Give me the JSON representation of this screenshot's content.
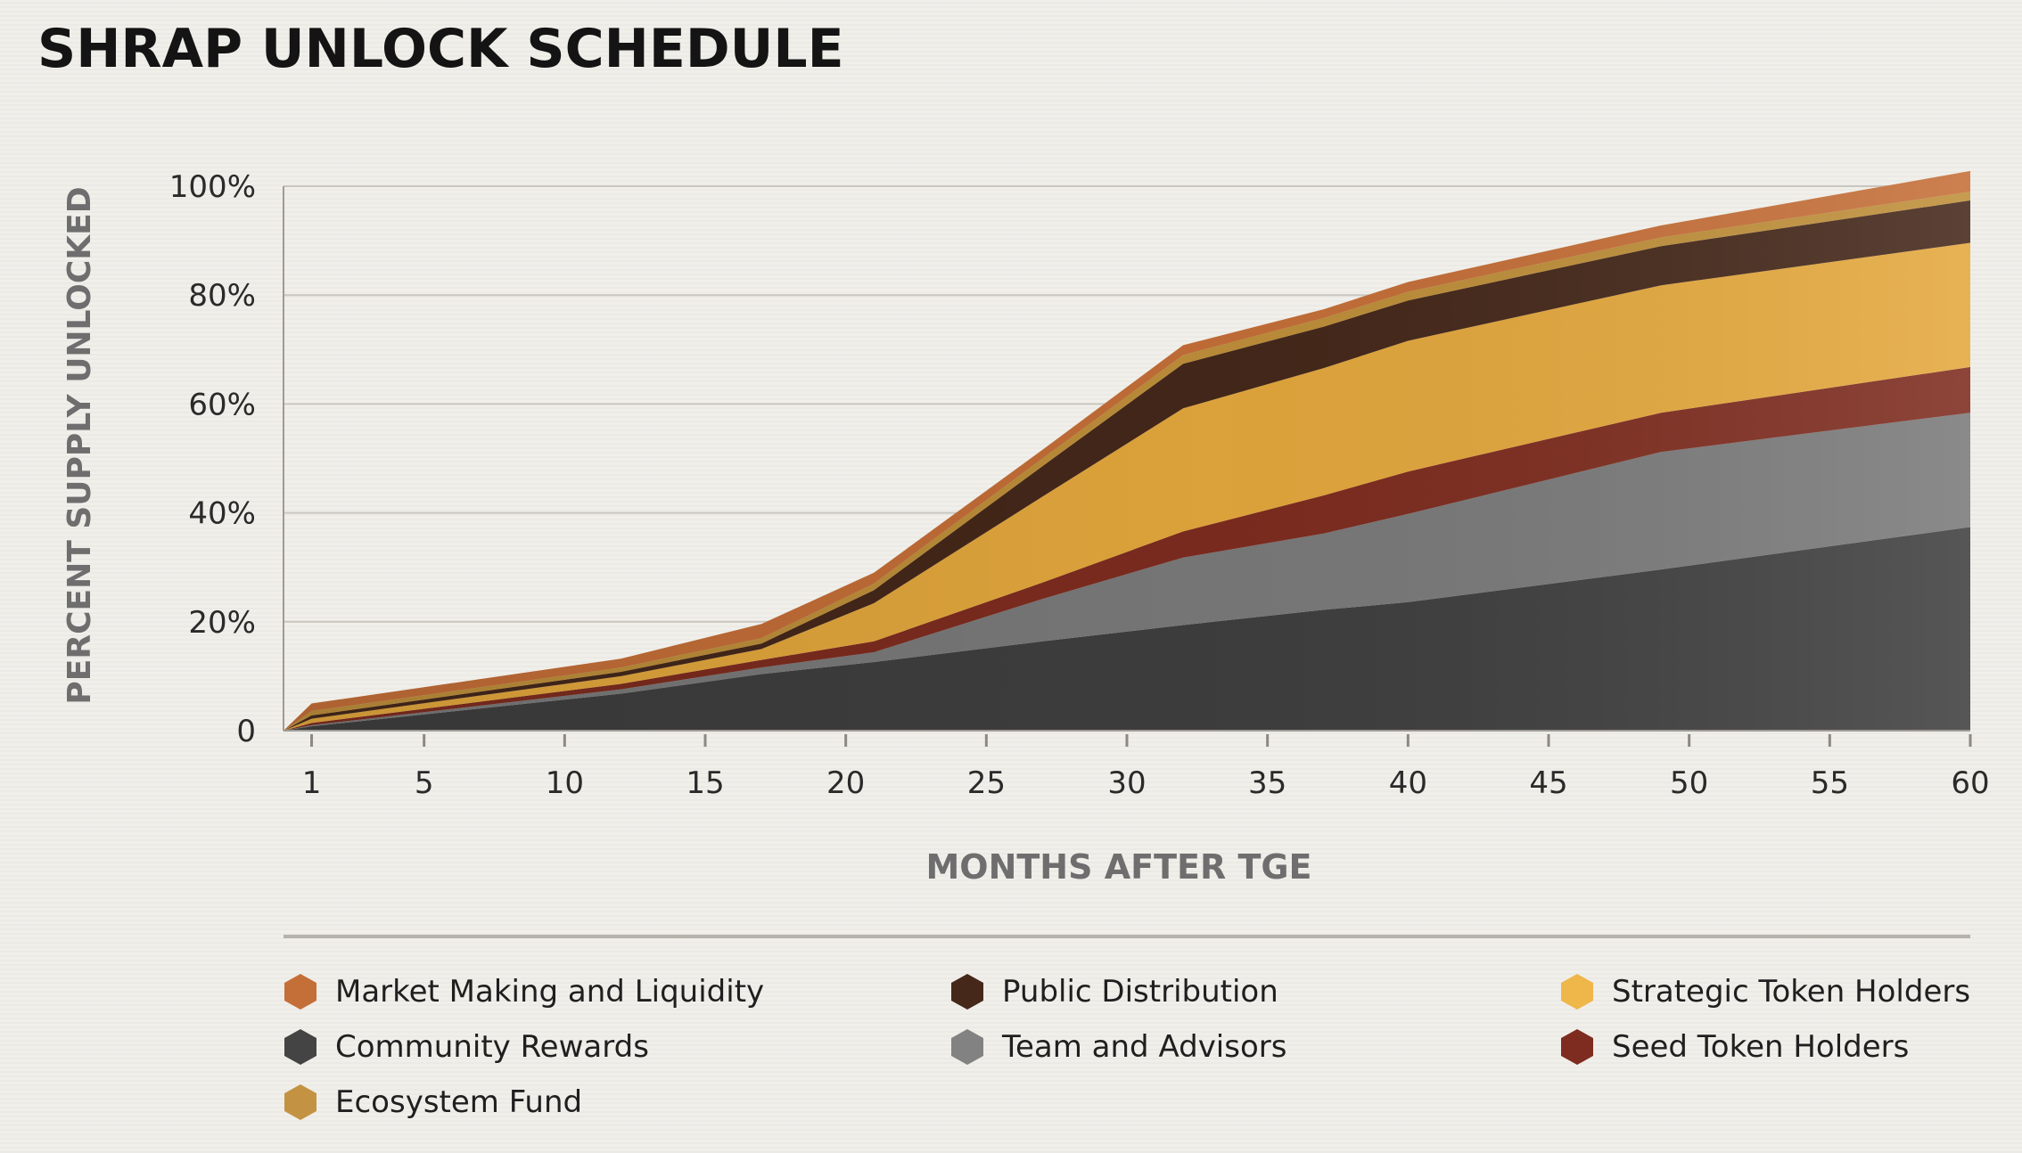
{
  "chart_data": {
    "type": "area",
    "stacked": true,
    "title": "SHRAP UNLOCK SCHEDULE",
    "xlabel": "MONTHS AFTER TGE",
    "ylabel": "PERCENT SUPPLY UNLOCKED",
    "xlim": [
      0,
      60
    ],
    "ylim": [
      0,
      100
    ],
    "x_ticks": [
      1,
      5,
      10,
      15,
      20,
      25,
      30,
      35,
      40,
      45,
      50,
      55,
      60
    ],
    "y_ticks": [
      0,
      20,
      40,
      60,
      80,
      100
    ],
    "y_tick_labels": [
      "0",
      "20%",
      "40%",
      "60%",
      "80%",
      "100%"
    ],
    "x": [
      0,
      1,
      12,
      17,
      21,
      27,
      32,
      37,
      40,
      49,
      60
    ],
    "series": [
      {
        "name": "Community Rewards",
        "color": "#3f3f3f",
        "values": [
          0,
          0.8,
          6.8,
          10.4,
          12.6,
          16.4,
          19.4,
          22.2,
          23.6,
          29.6,
          37.4
        ]
      },
      {
        "name": "Team and Advisors",
        "color": "#7a7a7a",
        "values": [
          0,
          0.2,
          0.8,
          1.2,
          1.8,
          7.8,
          12.4,
          14.0,
          16.2,
          21.6,
          21.0
        ]
      },
      {
        "name": "Seed Token Holders",
        "color": "#7e2c1f",
        "values": [
          0,
          0.4,
          1.0,
          1.4,
          2.0,
          3.0,
          4.8,
          7.0,
          7.8,
          7.2,
          8.4
        ]
      },
      {
        "name": "Strategic Token Holders",
        "color": "#e4a83d",
        "values": [
          0,
          0.8,
          1.4,
          2.0,
          7.0,
          15.8,
          22.6,
          23.4,
          24.0,
          23.4,
          22.8
        ]
      },
      {
        "name": "Public Distribution",
        "color": "#45281a",
        "values": [
          0,
          0.6,
          0.8,
          1.0,
          2.4,
          5.6,
          8.2,
          7.6,
          7.4,
          7.2,
          7.8
        ]
      },
      {
        "name": "Ecosystem Fund",
        "color": "#bf8f3a",
        "values": [
          0,
          0.8,
          0.8,
          1.0,
          1.2,
          1.4,
          1.6,
          1.6,
          1.6,
          1.6,
          1.6
        ]
      },
      {
        "name": "Market Making and Liquidity",
        "color": "#c56f38",
        "values": [
          0,
          1.4,
          1.6,
          2.6,
          2.0,
          1.6,
          1.8,
          1.6,
          1.8,
          2.2,
          3.8
        ]
      }
    ]
  },
  "legend": {
    "items": [
      {
        "label": "Market Making and Liquidity",
        "color": "#c56f38"
      },
      {
        "label": "Public Distribution",
        "color": "#45281a"
      },
      {
        "label": "Strategic Token Holders",
        "color": "#efb64a"
      },
      {
        "label": "Community Rewards",
        "color": "#444444"
      },
      {
        "label": "Team and Advisors",
        "color": "#828282"
      },
      {
        "label": "Seed Token Holders",
        "color": "#7e2c1f"
      },
      {
        "label": "Ecosystem Fund",
        "color": "#c39343"
      }
    ]
  }
}
